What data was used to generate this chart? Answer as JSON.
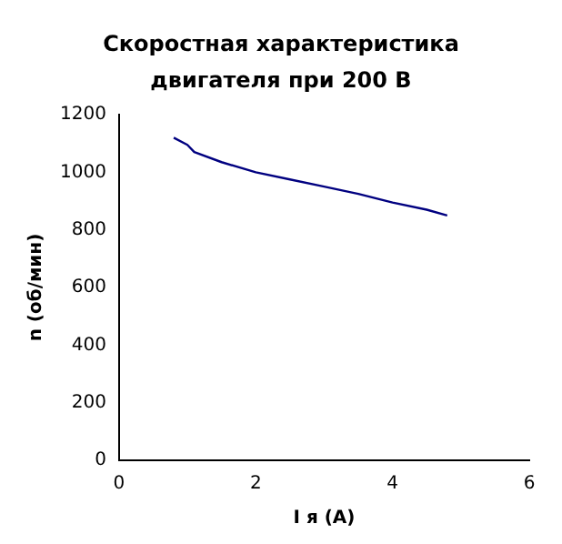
{
  "chart_data": {
    "type": "line",
    "title": "Скоростная характеристика двигателя при 200 В",
    "xlabel": "I я (А)",
    "ylabel": "n (об/мин)",
    "x": [
      0.8,
      1.0,
      1.1,
      1.5,
      2.0,
      2.5,
      3.0,
      3.5,
      4.0,
      4.5,
      4.8
    ],
    "series": [
      {
        "color": "#000080",
        "values": [
          1120,
          1095,
          1070,
          1035,
          1000,
          975,
          950,
          925,
          895,
          870,
          850
        ]
      }
    ],
    "xlim": [
      0,
      6
    ],
    "xticks": [
      0,
      2,
      4,
      6
    ],
    "ylim": [
      0,
      1200
    ],
    "yticks": [
      0,
      200,
      400,
      600,
      800,
      1000,
      1200
    ],
    "grid": false,
    "legend": false,
    "marker": "none"
  }
}
